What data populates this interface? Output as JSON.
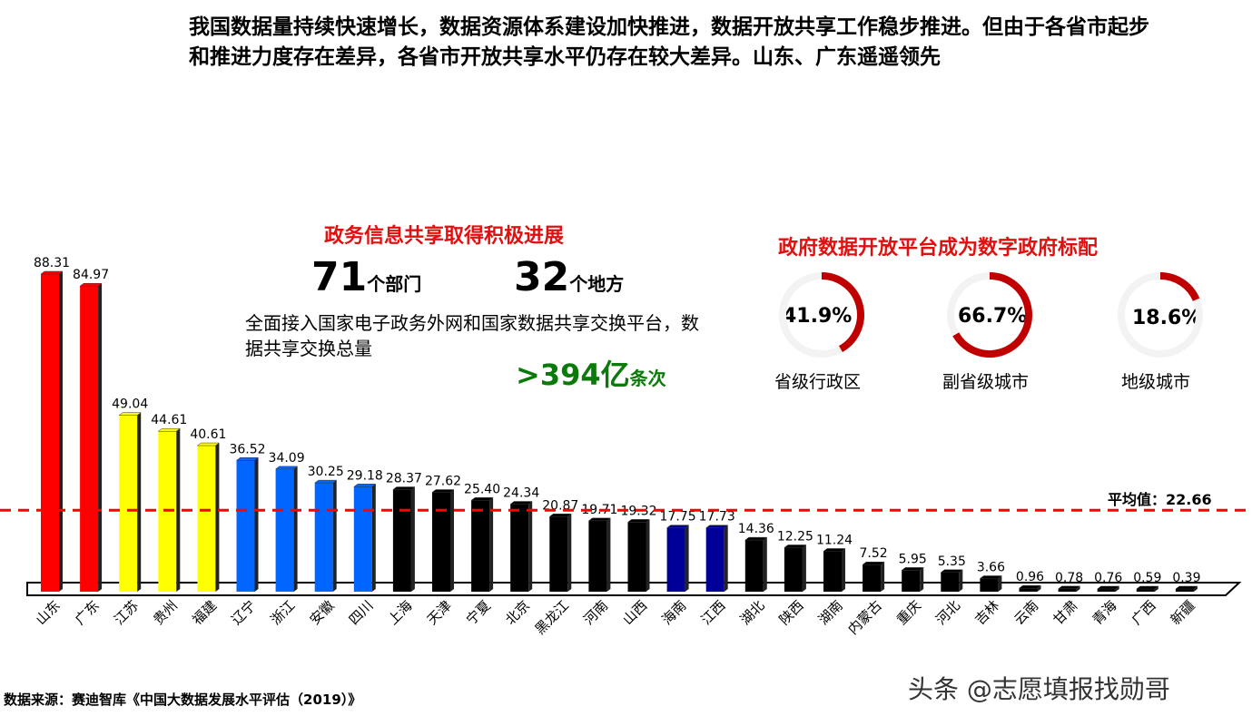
{
  "headline": "我国数据量持续快速增长，数据资源体系建设加快推进，数据开放共享工作稳步推进。但由于各省市起步和推进力度存在差异，各省市开放共享水平仍存在较大差异。山东、广东遥遥领先",
  "panel_left": {
    "title": "政务信息共享取得积极进展",
    "stat1_num": "71",
    "stat1_unit": "个部门",
    "stat2_num": "32",
    "stat2_unit": "个地方",
    "desc": "全面接入国家电子政务外网和国家数据共享交换平台，数据共享交换总量",
    "total_num": ">394亿",
    "total_unit": "条次"
  },
  "panel_right": {
    "title": "政府数据开放平台成为数字政府标配",
    "gauges": [
      {
        "label": "省级行政区",
        "value": "41.9%",
        "fraction": 0.419
      },
      {
        "label": "副省级城市",
        "value": "66.7%",
        "fraction": 0.667
      },
      {
        "label": "地级城市",
        "value": "18.6%",
        "fraction": 0.186
      }
    ],
    "color": "#c00000"
  },
  "chart_data": {
    "type": "bar",
    "categories": [
      "山东",
      "广东",
      "江苏",
      "贵州",
      "福建",
      "辽宁",
      "浙江",
      "安徽",
      "四川",
      "上海",
      "天津",
      "宁夏",
      "北京",
      "黑龙江",
      "河南",
      "山西",
      "海南",
      "江西",
      "湖北",
      "陕西",
      "湖南",
      "内蒙古",
      "重庆",
      "河北",
      "吉林",
      "云南",
      "甘肃",
      "青海",
      "广西",
      "新疆"
    ],
    "values": [
      88.31,
      84.97,
      49.04,
      44.61,
      40.61,
      36.52,
      34.09,
      30.25,
      29.18,
      28.37,
      27.62,
      25.4,
      24.34,
      20.87,
      19.71,
      19.32,
      17.75,
      17.73,
      14.36,
      12.25,
      11.24,
      7.52,
      5.95,
      5.35,
      3.66,
      0.96,
      0.78,
      0.76,
      0.59,
      0.39
    ],
    "value_labels": [
      "88.31",
      "84.97",
      "49.04",
      "44.61",
      "40.61",
      "36.52",
      "34.09",
      "30.25",
      "29.18",
      "28.37",
      "27.62",
      "25.40",
      "24.34",
      "20.87",
      "19.71",
      "19.32",
      "17.75",
      "17.73",
      "14.36",
      "12.25",
      "11.24",
      "7.52",
      "5.95",
      "5.35",
      "3.66",
      "0.96",
      "0.78",
      "0.76",
      "0.59",
      "0.39"
    ],
    "bar_colors": [
      "#ff0000",
      "#ff0000",
      "#ffff00",
      "#ffff00",
      "#ffff00",
      "#0066ff",
      "#0066ff",
      "#0066ff",
      "#0066ff",
      "#000000",
      "#000000",
      "#000000",
      "#000000",
      "#000000",
      "#000000",
      "#000000",
      "#000099",
      "#000099",
      "#000000",
      "#000000",
      "#000000",
      "#000000",
      "#000000",
      "#000000",
      "#000000",
      "#000000",
      "#000000",
      "#000000",
      "#000000",
      "#000000"
    ],
    "average": {
      "label": "平均值：22.66",
      "value": 22.66,
      "color": "#ff0000"
    },
    "ylim": [
      0,
      90
    ]
  },
  "source": "数据来源：赛迪智库《中国大数据发展水平评估（2019）》",
  "watermark": "头条 @志愿填报找勋哥"
}
